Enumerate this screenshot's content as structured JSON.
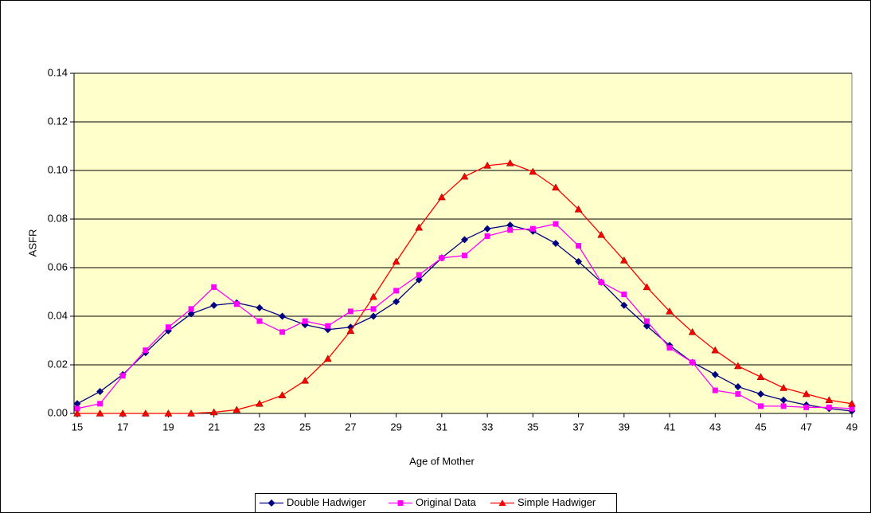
{
  "chart_data": {
    "type": "line",
    "xlabel": "Age of Mother",
    "ylabel": "ASFR",
    "x": [
      15,
      16,
      17,
      18,
      19,
      20,
      21,
      22,
      23,
      24,
      25,
      26,
      27,
      28,
      29,
      30,
      31,
      32,
      33,
      34,
      35,
      36,
      37,
      38,
      39,
      40,
      41,
      42,
      43,
      44,
      45,
      46,
      47,
      48,
      49
    ],
    "series": [
      {
        "name": "Double Hadwiger",
        "color": "#000080",
        "marker": "diamond",
        "values": [
          0.004,
          0.009,
          0.016,
          0.025,
          0.034,
          0.041,
          0.0445,
          0.0455,
          0.0435,
          0.04,
          0.0365,
          0.0345,
          0.0355,
          0.04,
          0.046,
          0.055,
          0.064,
          0.0715,
          0.076,
          0.0775,
          0.075,
          0.07,
          0.0625,
          0.054,
          0.0445,
          0.036,
          0.028,
          0.021,
          0.016,
          0.011,
          0.008,
          0.0055,
          0.0035,
          0.002,
          0.001
        ]
      },
      {
        "name": "Original Data",
        "color": "#ff00ff",
        "marker": "square",
        "values": [
          0.002,
          0.004,
          0.0155,
          0.026,
          0.0355,
          0.043,
          0.052,
          0.045,
          0.038,
          0.0335,
          0.038,
          0.036,
          0.042,
          0.043,
          0.0505,
          0.057,
          0.064,
          0.065,
          0.073,
          0.0755,
          0.076,
          0.078,
          0.069,
          0.054,
          0.049,
          0.038,
          0.027,
          0.021,
          0.0095,
          0.008,
          0.003,
          0.003,
          0.0025,
          0.0025,
          0.002
        ]
      },
      {
        "name": "Simple Hadwiger",
        "color": "#ff0000",
        "marker": "triangle",
        "values": [
          0,
          0,
          0,
          0,
          0,
          0,
          0.0005,
          0.0015,
          0.004,
          0.0075,
          0.0135,
          0.0225,
          0.034,
          0.048,
          0.0625,
          0.0765,
          0.089,
          0.0975,
          0.102,
          0.103,
          0.0995,
          0.093,
          0.084,
          0.0735,
          0.063,
          0.052,
          0.042,
          0.0335,
          0.026,
          0.0195,
          0.015,
          0.0105,
          0.008,
          0.0055,
          0.004
        ]
      }
    ],
    "xlim": [
      15,
      49
    ],
    "xticks": [
      15,
      17,
      19,
      21,
      23,
      25,
      27,
      29,
      31,
      33,
      35,
      37,
      39,
      41,
      43,
      45,
      47,
      49
    ],
    "ylim": [
      0,
      0.14
    ],
    "yticks": [
      {
        "value": 0,
        "label": "0.00"
      },
      {
        "value": 0.02,
        "label": "0.02"
      },
      {
        "value": 0.04,
        "label": "0.04"
      },
      {
        "value": 0.06,
        "label": "0.06"
      },
      {
        "value": 0.08,
        "label": "0.08"
      },
      {
        "value": 0.1,
        "label": "0.10"
      },
      {
        "value": 0.12,
        "label": "0.12"
      },
      {
        "value": 0.14,
        "label": "0.14"
      }
    ],
    "grid": true,
    "legend": "bottom",
    "plot_background": "#ffffcc"
  }
}
